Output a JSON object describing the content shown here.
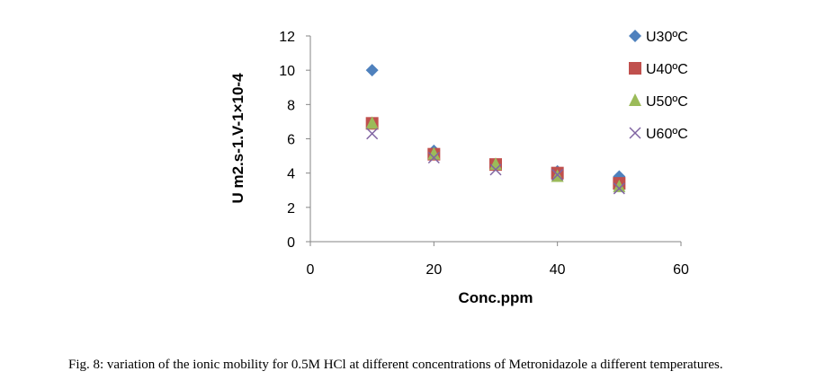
{
  "chart_data": {
    "type": "scatter",
    "xlabel": "Conc.ppm",
    "ylabel": "U m2.s-1.V-1×10-4",
    "xlim": [
      0,
      60
    ],
    "ylim": [
      0,
      12
    ],
    "xticks": [
      "0",
      "20",
      "40",
      "60"
    ],
    "yticks": [
      "0",
      "2",
      "4",
      "6",
      "8",
      "10",
      "12"
    ],
    "legend_position": "top-right",
    "series": [
      {
        "name": "U30ºC",
        "marker": "diamond",
        "color": "#4F81BD",
        "points": [
          [
            10,
            10
          ],
          [
            20,
            5.3
          ],
          [
            30,
            4.5
          ],
          [
            40,
            4.1
          ],
          [
            50,
            3.8
          ]
        ]
      },
      {
        "name": "U40ºC",
        "marker": "square",
        "color": "#C0504D",
        "points": [
          [
            10,
            6.9
          ],
          [
            20,
            5.1
          ],
          [
            30,
            4.5
          ],
          [
            40,
            4.0
          ],
          [
            50,
            3.4
          ]
        ]
      },
      {
        "name": "U50ºC",
        "marker": "triangle",
        "color": "#9BBB59",
        "points": [
          [
            10,
            6.9
          ],
          [
            20,
            5.1
          ],
          [
            30,
            4.5
          ],
          [
            40,
            3.8
          ],
          [
            50,
            3.2
          ]
        ]
      },
      {
        "name": "U60ºC",
        "marker": "x",
        "color": "#8064A2",
        "points": [
          [
            10,
            6.3
          ],
          [
            20,
            4.9
          ],
          [
            30,
            4.2
          ],
          [
            40,
            3.9
          ],
          [
            50,
            3.1
          ]
        ]
      }
    ]
  },
  "caption": "Fig. 8: variation of the ionic mobility for 0.5M HCl at different  concentrations of Metronidazole a different temperatures."
}
